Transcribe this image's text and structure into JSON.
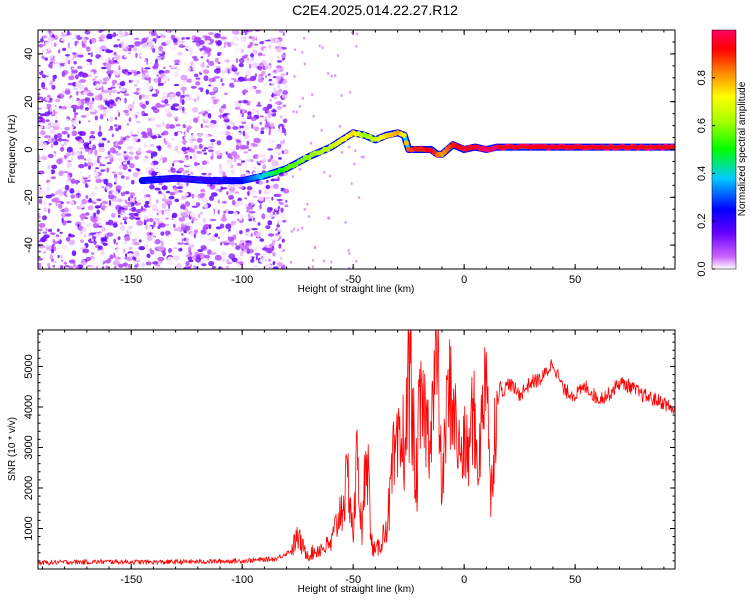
{
  "title": "C2E4.2025.014.22.27.R12",
  "chart_data": [
    {
      "type": "heatmap",
      "title": "C2E4.2025.014.22.27.R12",
      "xlabel": "Height of straight line (km)",
      "ylabel": "Frequency (Hz)",
      "xlim": [
        -192,
        95
      ],
      "ylim": [
        -50,
        50
      ],
      "x_ticks": [
        -150,
        -100,
        -50,
        0,
        50
      ],
      "y_ticks": [
        -40,
        -20,
        0,
        20,
        40
      ],
      "colorbar": {
        "label": "Normalized spectral amplitude",
        "range": [
          0,
          1
        ],
        "ticks": [
          0.0,
          0.2,
          0.4,
          0.6,
          0.8
        ],
        "colormap": [
          "#ffffff",
          "#cc66ff",
          "#5500ff",
          "#0000ff",
          "#00ccff",
          "#00ff00",
          "#ffff00",
          "#ff7700",
          "#ff0000",
          "#ff0066"
        ]
      },
      "ridge_track": {
        "x": [
          -145,
          -130,
          -115,
          -100,
          -90,
          -80,
          -70,
          -60,
          -55,
          -50,
          -45,
          -40,
          -35,
          -30,
          -27,
          -25,
          -22,
          -18,
          -15,
          -12,
          -10,
          -5,
          0,
          5,
          10,
          15,
          30,
          50,
          70,
          95
        ],
        "y": [
          -13,
          -12,
          -13,
          -13,
          -11,
          -8,
          -3,
          1,
          4,
          7,
          6,
          4,
          6,
          7,
          6,
          0,
          0,
          0,
          0,
          -2,
          -2,
          2,
          0,
          1,
          0,
          1,
          1,
          1,
          1,
          1
        ],
        "amplitude": [
          0.25,
          0.2,
          0.2,
          0.25,
          0.4,
          0.55,
          0.6,
          0.65,
          0.7,
          0.75,
          0.6,
          0.65,
          0.75,
          0.8,
          0.7,
          0.85,
          0.9,
          0.9,
          0.95,
          0.85,
          0.8,
          0.9,
          0.95,
          0.95,
          1.0,
          1.0,
          1.0,
          1.0,
          1.0,
          1.0
        ]
      },
      "noise_region_x": [
        -192,
        -80
      ]
    },
    {
      "type": "line",
      "xlabel": "Height of straight line (km)",
      "ylabel": "SNR (10 * v/v)",
      "xlim": [
        -192,
        95
      ],
      "ylim": [
        0,
        5900
      ],
      "x_ticks": [
        -150,
        -100,
        -50,
        0,
        50
      ],
      "y_ticks": [
        1000,
        2000,
        3000,
        4000,
        5000
      ],
      "color": "#ff0000",
      "x": [
        -192,
        -180,
        -160,
        -140,
        -120,
        -100,
        -85,
        -78,
        -75,
        -72,
        -70,
        -65,
        -60,
        -55,
        -52,
        -50,
        -48,
        -46,
        -44,
        -42,
        -40,
        -38,
        -36,
        -34,
        -32,
        -30,
        -28,
        -26,
        -24,
        -22,
        -20,
        -18,
        -16,
        -14,
        -12,
        -10,
        -8,
        -6,
        -4,
        -2,
        0,
        2,
        4,
        6,
        8,
        10,
        12,
        14,
        16,
        18,
        20,
        25,
        30,
        35,
        40,
        45,
        50,
        55,
        60,
        65,
        70,
        75,
        80,
        85,
        90,
        95
      ],
      "y": [
        150,
        170,
        180,
        170,
        180,
        200,
        250,
        450,
        800,
        450,
        350,
        500,
        600,
        1600,
        2200,
        800,
        3000,
        600,
        3600,
        700,
        400,
        600,
        900,
        1400,
        2500,
        2700,
        3000,
        3500,
        5500,
        1700,
        3800,
        3900,
        3300,
        4200,
        5200,
        1800,
        3800,
        4500,
        3600,
        2800,
        3000,
        2800,
        4000,
        2600,
        3500,
        5700,
        1500,
        3800,
        4500,
        4400,
        4600,
        4300,
        4600,
        4700,
        5100,
        4400,
        4300,
        4500,
        4200,
        4300,
        4600,
        4500,
        4300,
        4200,
        4100,
        3900
      ]
    }
  ]
}
